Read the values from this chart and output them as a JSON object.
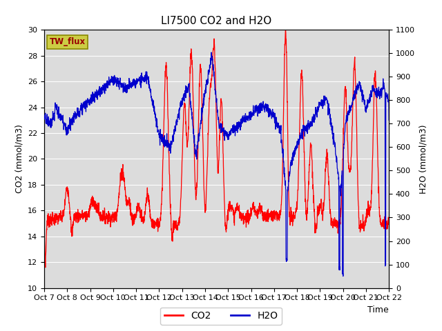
{
  "title": "LI7500 CO2 and H2O",
  "xlabel": "Time",
  "ylabel_left": "CO2 (mmol/m3)",
  "ylabel_right": "H2O (mmol/m3)",
  "ylim_left": [
    10,
    30
  ],
  "ylim_right": [
    0,
    1100
  ],
  "co2_color": "#FF0000",
  "h2o_color": "#0000CC",
  "bg_color": "#DCDCDC",
  "fig_bg_color": "#FFFFFF",
  "legend_label": "TW_flux",
  "legend_box_facecolor": "#CCCC44",
  "legend_box_edgecolor": "#888800",
  "legend_text_color": "#990000",
  "grid_color": "#FFFFFF",
  "xtick_labels": [
    "Oct 7",
    "Oct 8",
    "Oct 9",
    "Oct 10",
    "Oct 11",
    "Oct 12",
    "Oct 13",
    "Oct 14",
    "Oct 15",
    "Oct 16",
    "Oct 17",
    "Oct 18",
    "Oct 19",
    "Oct 20",
    "Oct 21",
    "Oct 22"
  ],
  "yticks_left": [
    10,
    12,
    14,
    16,
    18,
    20,
    22,
    24,
    26,
    28,
    30
  ],
  "yticks_right": [
    0,
    100,
    200,
    300,
    400,
    500,
    600,
    700,
    800,
    900,
    1000,
    1100
  ],
  "n_points": 2000,
  "title_fontsize": 11,
  "line_width": 0.9,
  "tick_fontsize": 8,
  "axis_fontsize": 9
}
